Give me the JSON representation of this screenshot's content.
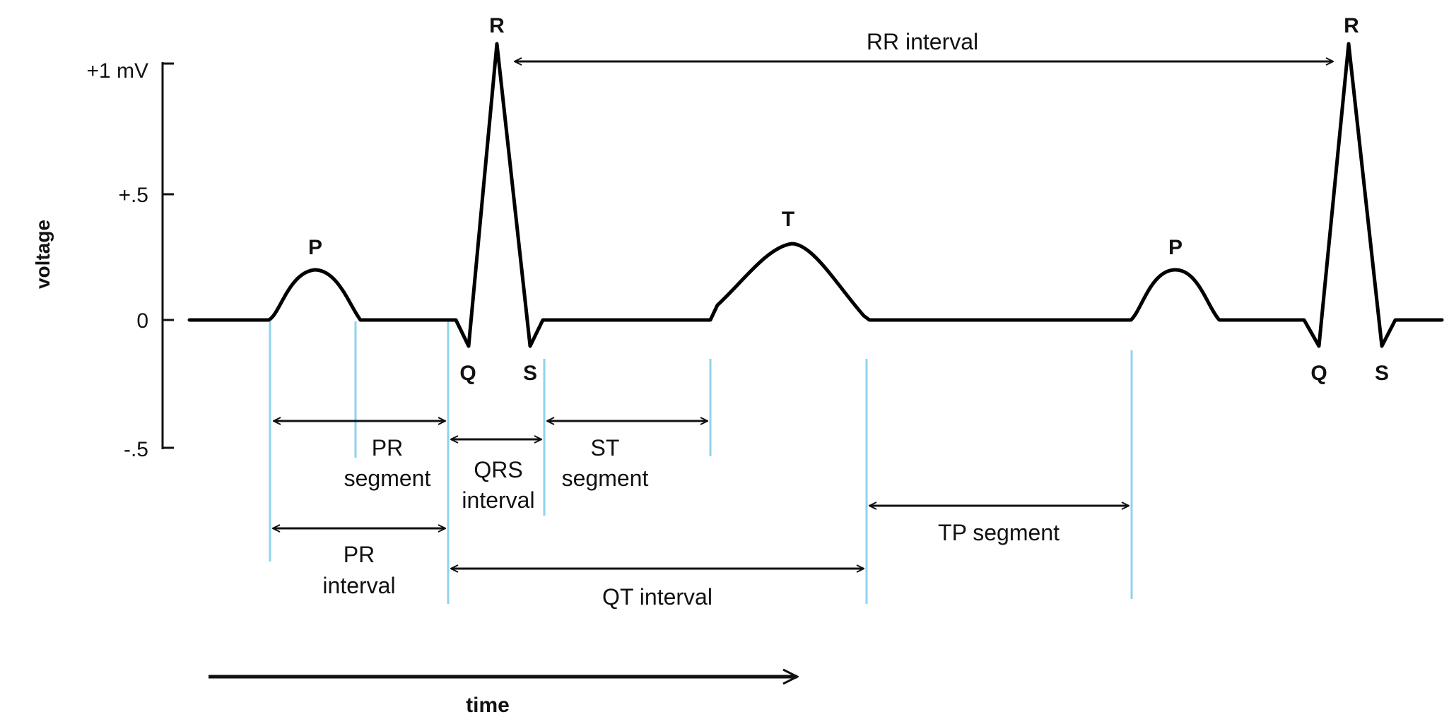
{
  "axis": {
    "y_title": "voltage",
    "y_ticks": [
      "+1 mV",
      "+.5",
      "0",
      "-.5"
    ],
    "x_title": "time"
  },
  "wave_labels": {
    "p1": "P",
    "q1": "Q",
    "r1": "R",
    "s1": "S",
    "t1": "T",
    "p2": "P",
    "q2": "Q",
    "r2": "R",
    "s2": "S"
  },
  "intervals": {
    "rr": "RR interval",
    "pr_segment": [
      "PR",
      "segment"
    ],
    "qrs_interval": [
      "QRS",
      "interval"
    ],
    "st_segment": [
      "ST",
      "segment"
    ],
    "pr_interval": [
      "PR",
      "interval"
    ],
    "qt_interval": "QT interval",
    "tp_segment": "TP segment"
  },
  "colors": {
    "trace": "#000000",
    "boundary_lines": "#8fd3ee"
  }
}
